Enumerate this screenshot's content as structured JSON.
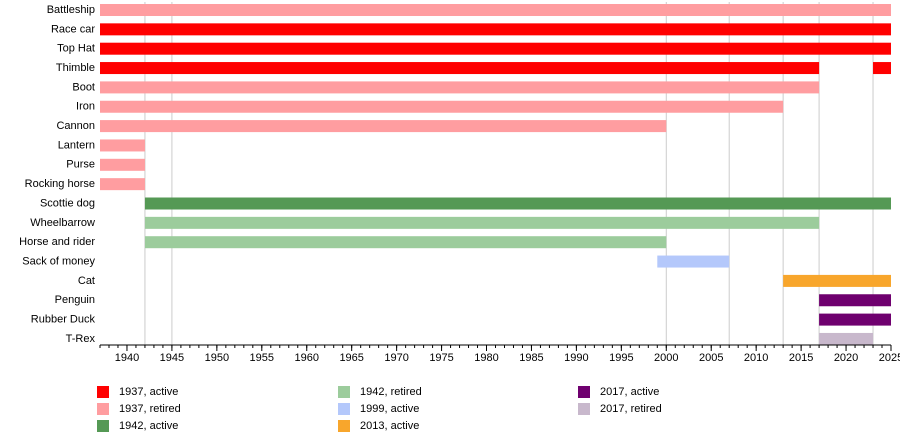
{
  "chart_data": {
    "type": "timeline",
    "categories": [
      "Battleship",
      "Race car",
      "Top Hat",
      "Thimble",
      "Boot",
      "Iron",
      "Cannon",
      "Lantern",
      "Purse",
      "Rocking horse",
      "Scottie dog",
      "Wheelbarrow",
      "Horse and rider",
      "Sack of money",
      "Cat",
      "Penguin",
      "Rubber Duck",
      "T-Rex"
    ],
    "series": [
      {
        "name": "1937, active",
        "color": "#ff0000"
      },
      {
        "name": "1937, retired",
        "color": "#ff9da0"
      },
      {
        "name": "1942, active",
        "color": "#559955"
      },
      {
        "name": "1942, retired",
        "color": "#9ccc9c"
      },
      {
        "name": "1999, active",
        "color": "#b4c8fb"
      },
      {
        "name": "2013, active",
        "color": "#f8a62c"
      },
      {
        "name": "2017, active",
        "color": "#6f006f"
      },
      {
        "name": "2017, retired",
        "color": "#c8b8cc"
      }
    ],
    "bars": [
      {
        "category": 0,
        "series": 1,
        "start": 1937,
        "end": 2025
      },
      {
        "category": 1,
        "series": 0,
        "start": 1937,
        "end": 2025
      },
      {
        "category": 2,
        "series": 0,
        "start": 1937,
        "end": 2025
      },
      {
        "category": 3,
        "series": 0,
        "start": 1937,
        "end": 2017
      },
      {
        "category": 3,
        "series": 0,
        "start": 2023,
        "end": 2025
      },
      {
        "category": 4,
        "series": 1,
        "start": 1937,
        "end": 2017
      },
      {
        "category": 5,
        "series": 1,
        "start": 1937,
        "end": 2013
      },
      {
        "category": 6,
        "series": 1,
        "start": 1937,
        "end": 2000
      },
      {
        "category": 7,
        "series": 1,
        "start": 1937,
        "end": 1942
      },
      {
        "category": 8,
        "series": 1,
        "start": 1937,
        "end": 1942
      },
      {
        "category": 9,
        "series": 1,
        "start": 1937,
        "end": 1942
      },
      {
        "category": 10,
        "series": 2,
        "start": 1942,
        "end": 2025
      },
      {
        "category": 11,
        "series": 3,
        "start": 1942,
        "end": 2017
      },
      {
        "category": 12,
        "series": 3,
        "start": 1942,
        "end": 2000
      },
      {
        "category": 13,
        "series": 4,
        "start": 1999,
        "end": 2007
      },
      {
        "category": 14,
        "series": 5,
        "start": 2013,
        "end": 2025
      },
      {
        "category": 15,
        "series": 6,
        "start": 2017,
        "end": 2025
      },
      {
        "category": 16,
        "series": 6,
        "start": 2017,
        "end": 2025
      },
      {
        "category": 17,
        "series": 7,
        "start": 2017,
        "end": 2023
      }
    ],
    "xlim": [
      1937,
      2025
    ],
    "xticks": [
      1940,
      1945,
      1950,
      1955,
      1960,
      1965,
      1970,
      1975,
      1980,
      1985,
      1990,
      1995,
      2000,
      2005,
      2010,
      2015,
      2020,
      2025
    ],
    "markers": [
      1942,
      1945,
      2000,
      2007,
      2013,
      2017,
      2023
    ]
  }
}
